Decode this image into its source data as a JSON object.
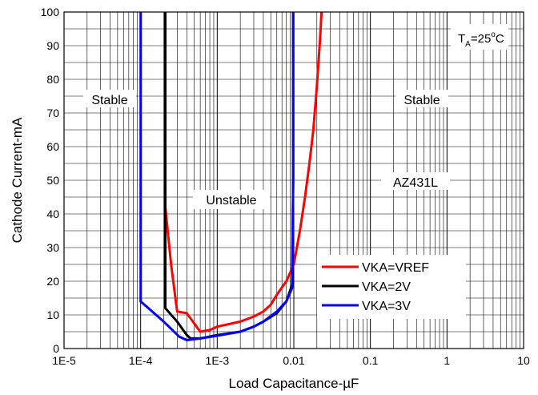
{
  "chart_data": {
    "type": "line",
    "title": "",
    "xlabel": "Load Capacitance-µF",
    "ylabel": "Cathode Current-mA",
    "x_scale": "log",
    "xlim": [
      1e-05,
      10
    ],
    "ylim": [
      0,
      100
    ],
    "x_ticks": [
      1e-05,
      0.0001,
      0.001,
      0.01,
      0.1,
      1,
      10
    ],
    "x_tick_labels": [
      "1E-5",
      "1E-4",
      "1E-3",
      "0.01",
      "0.1",
      "1",
      "10"
    ],
    "y_ticks": [
      0,
      10,
      20,
      30,
      40,
      50,
      60,
      70,
      80,
      90,
      100
    ],
    "y_tick_labels": [
      "0",
      "10",
      "20",
      "30",
      "40",
      "50",
      "60",
      "70",
      "80",
      "90",
      "100"
    ],
    "grid": true,
    "legend_position": "bottom-right",
    "series": [
      {
        "name": "VKA=VREF",
        "color": "#ff0000",
        "points": [
          [
            0.00021,
            42
          ],
          [
            0.00025,
            25
          ],
          [
            0.0003,
            11
          ],
          [
            0.0004,
            10.5
          ],
          [
            0.0006,
            5
          ],
          [
            0.0008,
            5.5
          ],
          [
            0.001,
            6.5
          ],
          [
            0.002,
            8
          ],
          [
            0.003,
            9.5
          ],
          [
            0.004,
            11
          ],
          [
            0.005,
            13
          ],
          [
            0.006,
            16
          ],
          [
            0.008,
            20
          ],
          [
            0.01,
            25
          ],
          [
            0.012,
            35
          ],
          [
            0.014,
            45
          ],
          [
            0.016,
            55
          ],
          [
            0.018,
            65
          ],
          [
            0.02,
            78
          ],
          [
            0.022,
            92
          ],
          [
            0.023,
            100
          ]
        ]
      },
      {
        "name": "VKA=2V",
        "color": "#000000",
        "points": [
          [
            0.00021,
            100
          ],
          [
            0.00021,
            12
          ],
          [
            0.0003,
            8
          ],
          [
            0.0004,
            4
          ],
          [
            0.00045,
            3
          ],
          [
            0.0006,
            3
          ],
          [
            0.001,
            4
          ],
          [
            0.002,
            5
          ],
          [
            0.003,
            6.5
          ],
          [
            0.004,
            8
          ],
          [
            0.006,
            10.5
          ],
          [
            0.008,
            14
          ],
          [
            0.0095,
            19
          ],
          [
            0.0098,
            50
          ],
          [
            0.0098,
            100
          ]
        ]
      },
      {
        "name": "VKA=3V",
        "color": "#0000ff",
        "points": [
          [
            0.0001,
            100
          ],
          [
            0.0001,
            14
          ],
          [
            0.0002,
            8
          ],
          [
            0.00032,
            3.5
          ],
          [
            0.0004,
            2.5
          ],
          [
            0.0006,
            3
          ],
          [
            0.001,
            3.8
          ],
          [
            0.002,
            5
          ],
          [
            0.003,
            6.5
          ],
          [
            0.004,
            8
          ],
          [
            0.006,
            11
          ],
          [
            0.008,
            14
          ],
          [
            0.0095,
            18
          ],
          [
            0.0098,
            50
          ],
          [
            0.0098,
            100
          ]
        ]
      }
    ],
    "annotations": [
      {
        "id": "stable-left",
        "text": "Stable"
      },
      {
        "id": "stable-right",
        "text": "Stable"
      },
      {
        "id": "unstable",
        "text": "Unstable"
      },
      {
        "id": "part",
        "text": "AZ431L"
      },
      {
        "id": "temp",
        "text_main": "T",
        "text_sub": "A",
        "text_eq": "=25",
        "text_sup": "o",
        "text_unit": "C"
      }
    ]
  }
}
